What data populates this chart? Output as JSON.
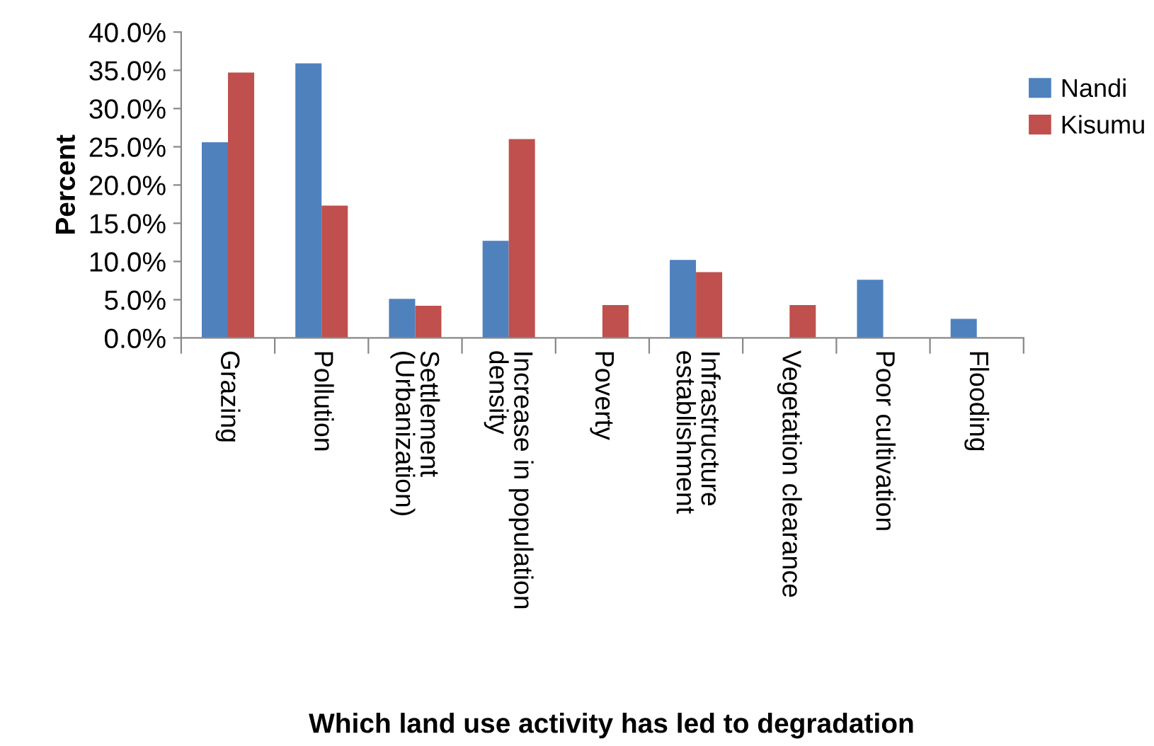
{
  "chart_data": {
    "type": "bar",
    "xlabel": "Which land use activity has led to degradation",
    "ylabel": "Percent",
    "categories": [
      "Grazing",
      "Pollution",
      "Settlement\n(Urbanization)",
      "Increase in population\ndensity",
      "Poverty",
      "Infrastructure\nestablishment",
      "Vegetation clearance",
      "Poor cultivation",
      "Flooding"
    ],
    "series": [
      {
        "name": "Nandi",
        "color": "#4f81bd",
        "values": [
          25.6,
          35.9,
          5.1,
          12.7,
          0,
          10.2,
          0,
          7.6,
          2.5
        ]
      },
      {
        "name": "Kisumu",
        "color": "#c0504d",
        "values": [
          34.7,
          17.3,
          4.2,
          26.0,
          4.3,
          8.6,
          4.3,
          0,
          0
        ]
      }
    ],
    "ylim": [
      0,
      40
    ],
    "yticks": [
      {
        "value": 0,
        "label": "0.0%"
      },
      {
        "value": 5,
        "label": "5.0%"
      },
      {
        "value": 10,
        "label": "10.0%"
      },
      {
        "value": 15,
        "label": "15.0%"
      },
      {
        "value": 20,
        "label": "20.0%"
      },
      {
        "value": 25,
        "label": "25.0%"
      },
      {
        "value": 30,
        "label": "30.0%"
      },
      {
        "value": 35,
        "label": "35.0%"
      },
      {
        "value": 40,
        "label": "40.0%"
      }
    ],
    "grid": false,
    "legend": "right"
  }
}
